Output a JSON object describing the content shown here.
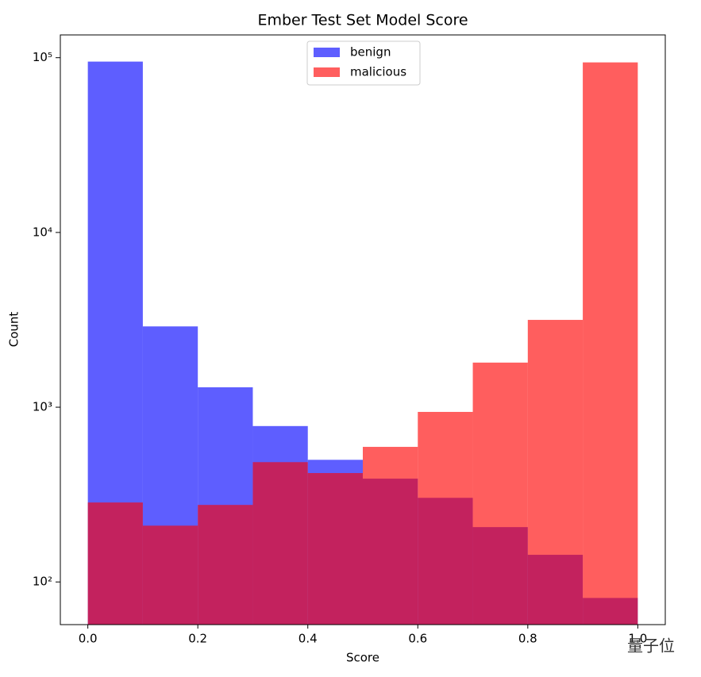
{
  "chart_data": {
    "type": "histogram",
    "title": "Ember Test Set Model Score",
    "xlabel": "Score",
    "ylabel": "Count",
    "bins": [
      0,
      0.1,
      0.2,
      0.3,
      0.4,
      0.5,
      0.6,
      0.7,
      0.8,
      0.9,
      1.0
    ],
    "series": [
      {
        "name": "benign",
        "color": "#0000ff",
        "values": [
          95000,
          2900,
          1300,
          780,
          500,
          390,
          303,
          206,
          143,
          81
        ]
      },
      {
        "name": "malicious",
        "color": "#ff0000",
        "values": [
          285,
          210,
          276,
          485,
          420,
          593,
          940,
          1800,
          3160,
          94000
        ]
      }
    ],
    "alpha": 0.63,
    "log_y": true,
    "xlim": [
      -0.05,
      1.05
    ],
    "ylim": [
      57,
      135000
    ],
    "xticks": [
      {
        "value": 0,
        "label": "0.0"
      },
      {
        "value": 0.2,
        "label": "0.2"
      },
      {
        "value": 0.4,
        "label": "0.4"
      },
      {
        "value": 0.6,
        "label": "0.6"
      },
      {
        "value": 0.8,
        "label": "0.8"
      },
      {
        "value": 1.0,
        "label": "1.0"
      }
    ],
    "yticks": [
      {
        "value": 100,
        "label": "10²"
      },
      {
        "value": 1000,
        "label": "10³"
      },
      {
        "value": 10000,
        "label": "10⁴"
      },
      {
        "value": 100000,
        "label": "10⁵"
      }
    ],
    "legend": "upper center",
    "watermark": "量子位"
  }
}
